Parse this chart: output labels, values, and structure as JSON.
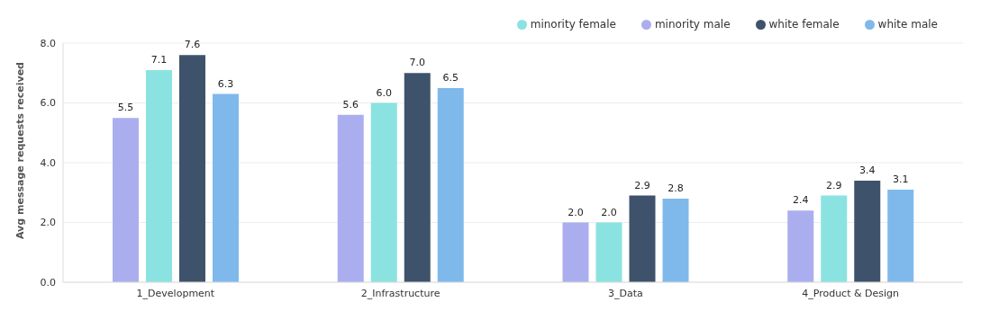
{
  "chart_data": {
    "type": "bar",
    "ylabel": "Avg message requests received",
    "categories": [
      "1_Development",
      "2_Infrastructure",
      "3_Data",
      "4_Product & Design"
    ],
    "series": [
      {
        "name": "minority male",
        "color": "#abaeee",
        "values": [
          5.5,
          5.6,
          2.0,
          2.4
        ],
        "value_labels": [
          "5.5",
          "5.6",
          "2.0",
          "2.4"
        ]
      },
      {
        "name": "minority female",
        "color": "#8ae3e0",
        "values": [
          7.1,
          6.0,
          2.0,
          2.9
        ],
        "value_labels": [
          "7.1",
          "6.0",
          "2.0",
          "2.9"
        ]
      },
      {
        "name": "white female",
        "color": "#3e536b",
        "values": [
          7.6,
          7.0,
          2.9,
          3.4
        ],
        "value_labels": [
          "7.6",
          "7.0",
          "2.9",
          "3.4"
        ]
      },
      {
        "name": "white male",
        "color": "#7fb9eb",
        "values": [
          6.3,
          6.5,
          2.8,
          3.1
        ],
        "value_labels": [
          "6.3",
          "6.5",
          "2.8",
          "3.1"
        ]
      }
    ],
    "ylim": [
      0,
      8
    ],
    "yticks": [
      {
        "value": 0,
        "label": "0.0"
      },
      {
        "value": 2,
        "label": "2.0"
      },
      {
        "value": 4,
        "label": "4.0"
      },
      {
        "value": 6,
        "label": "6.0"
      },
      {
        "value": 8,
        "label": "8.0"
      }
    ],
    "grid": "y",
    "legend": "top right"
  }
}
